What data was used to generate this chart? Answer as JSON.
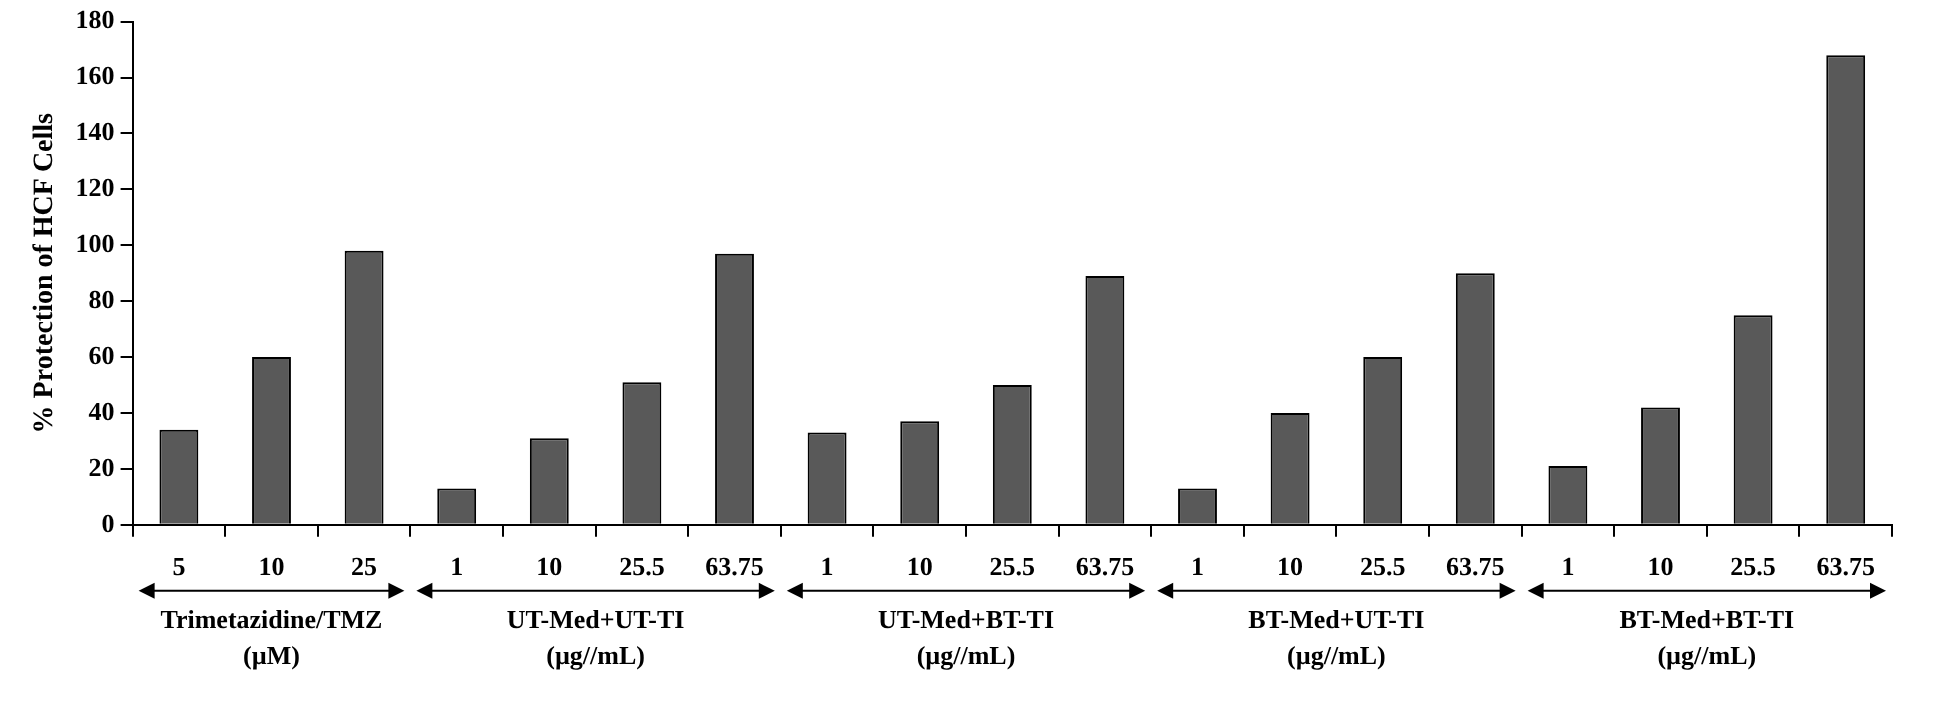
{
  "chart_data": {
    "type": "bar",
    "ylabel": "% Protection of HCF Cells",
    "categories": [
      "5",
      "10",
      "25",
      "1",
      "10",
      "25.5",
      "63.75",
      "1",
      "10",
      "25.5",
      "63.75",
      "1",
      "10",
      "25.5",
      "63.75",
      "1",
      "10",
      "25.5",
      "63.75"
    ],
    "values": [
      34,
      60,
      98,
      13,
      31,
      51,
      97,
      33,
      37,
      50,
      89,
      13,
      40,
      60,
      90,
      21,
      42,
      75,
      168
    ],
    "color": "#595959",
    "ylim": [
      0,
      180
    ],
    "yticks": [
      0,
      20,
      40,
      60,
      80,
      100,
      120,
      140,
      160,
      180
    ],
    "grid": false,
    "legend": false,
    "annotations": [
      "Trimetazidine/TMZ\n(µM)",
      "UT-Med+UT-TI\n(µg//mL)",
      "UT-Med+BT-TI\n(µg//mL)",
      "BT-Med+UT-TI\n(µg//mL)",
      "BT-Med+BT-TI\n(µg//mL)"
    ]
  }
}
